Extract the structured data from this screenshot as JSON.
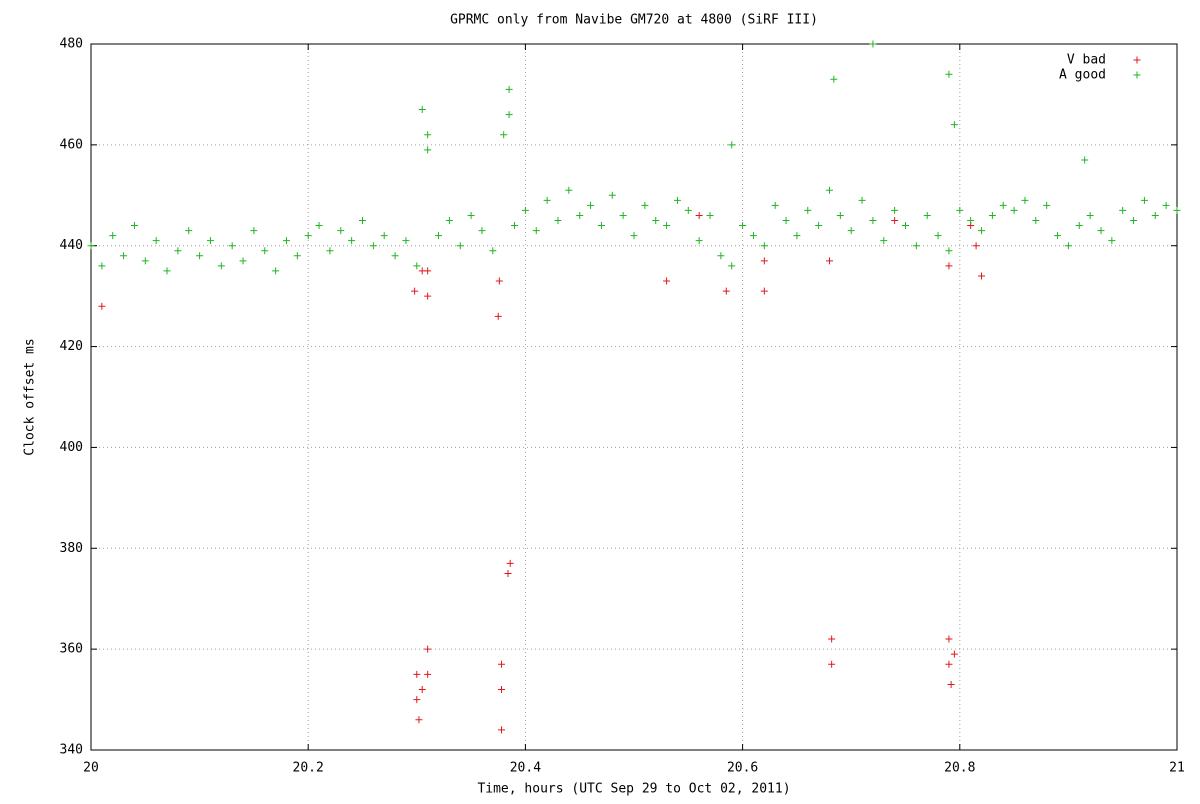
{
  "chart_data": {
    "type": "scatter",
    "title": "GPRMC only from Navibe GM720 at 4800 (SiRF III)",
    "x_label": "Time, hours (UTC Sep 29 to Oct 02, 2011)",
    "y_label": "Clock offset ms",
    "xlim": [
      20,
      21
    ],
    "xticks": [
      20,
      20.2,
      20.4,
      20.6,
      20.8,
      21
    ],
    "ylim": [
      340,
      480
    ],
    "yticks": [
      340,
      360,
      380,
      400,
      420,
      440,
      460,
      480
    ],
    "grid": true,
    "legend": "top-right",
    "series": [
      {
        "name": "V bad",
        "color": "#e0181e",
        "x": [
          20.01,
          20.298,
          20.3,
          20.3,
          20.302,
          20.305,
          20.31,
          20.31,
          20.305,
          20.31,
          20.31,
          20.375,
          20.376,
          20.378,
          20.378,
          20.378,
          20.384,
          20.386,
          20.585,
          20.62,
          20.62,
          20.68,
          20.682,
          20.682,
          20.74,
          20.79,
          20.79,
          20.79,
          20.792,
          20.795,
          20.81,
          20.815,
          20.82,
          20.56,
          20.53
        ],
        "values": [
          428,
          431,
          355,
          350,
          346,
          352,
          360,
          355,
          435,
          435,
          430,
          426,
          433,
          357,
          352,
          344,
          375,
          377,
          431,
          431,
          437,
          437,
          362,
          357,
          445,
          436,
          362,
          357,
          353,
          359,
          444,
          440,
          434,
          446,
          433
        ]
      },
      {
        "name": "A good",
        "color": "#21b521",
        "x": [
          20.0,
          20.01,
          20.02,
          20.03,
          20.04,
          20.05,
          20.06,
          20.07,
          20.08,
          20.09,
          20.1,
          20.11,
          20.12,
          20.13,
          20.14,
          20.15,
          20.16,
          20.17,
          20.18,
          20.19,
          20.2,
          20.21,
          20.22,
          20.23,
          20.24,
          20.25,
          20.26,
          20.27,
          20.28,
          20.29,
          20.3,
          20.31,
          20.32,
          20.33,
          20.34,
          20.35,
          20.36,
          20.37,
          20.38,
          20.39,
          20.4,
          20.41,
          20.42,
          20.43,
          20.44,
          20.45,
          20.46,
          20.47,
          20.48,
          20.49,
          20.5,
          20.51,
          20.52,
          20.53,
          20.54,
          20.55,
          20.56,
          20.57,
          20.58,
          20.59,
          20.6,
          20.61,
          20.62,
          20.63,
          20.64,
          20.65,
          20.66,
          20.67,
          20.68,
          20.69,
          20.7,
          20.71,
          20.72,
          20.73,
          20.74,
          20.75,
          20.76,
          20.77,
          20.78,
          20.79,
          20.8,
          20.81,
          20.82,
          20.83,
          20.84,
          20.85,
          20.86,
          20.87,
          20.88,
          20.89,
          20.9,
          20.91,
          20.92,
          20.93,
          20.94,
          20.95,
          20.96,
          20.97,
          20.98,
          20.99,
          21,
          20.305,
          20.31,
          20.385,
          20.385,
          20.684,
          20.72,
          20.79,
          20.795,
          20.59,
          20.915
        ],
        "values": [
          440,
          436,
          442,
          438,
          444,
          437,
          441,
          435,
          439,
          443,
          438,
          441,
          436,
          440,
          437,
          443,
          439,
          435,
          441,
          438,
          442,
          444,
          439,
          443,
          441,
          445,
          440,
          442,
          438,
          441,
          436,
          459,
          442,
          445,
          440,
          446,
          443,
          439,
          462,
          444,
          447,
          443,
          449,
          445,
          451,
          446,
          448,
          444,
          450,
          446,
          442,
          448,
          445,
          444,
          449,
          447,
          441,
          446,
          438,
          436,
          444,
          442,
          440,
          448,
          445,
          442,
          447,
          444,
          451,
          446,
          443,
          449,
          445,
          441,
          447,
          444,
          440,
          446,
          442,
          439,
          447,
          445,
          443,
          446,
          448,
          447,
          449,
          445,
          448,
          442,
          440,
          444,
          446,
          443,
          441,
          447,
          445,
          449,
          446,
          448,
          447,
          467,
          462,
          466,
          471,
          473,
          480,
          474,
          464,
          460,
          457
        ]
      }
    ]
  }
}
